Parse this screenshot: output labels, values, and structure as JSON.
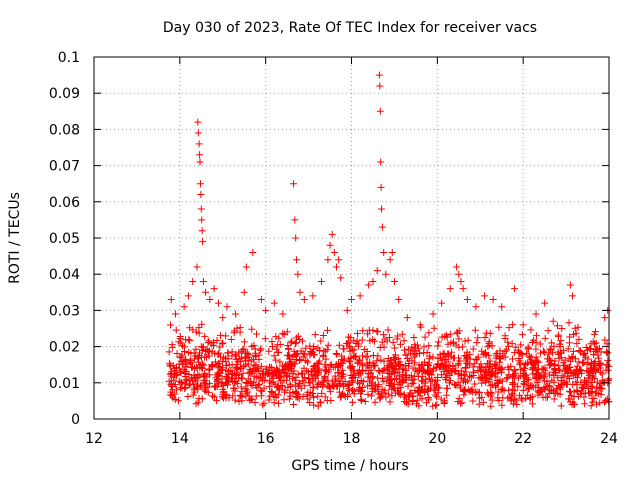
{
  "chart_data": {
    "type": "scatter",
    "title": "Day 030 of 2023, Rate Of TEC Index for receiver vacs",
    "xlabel": "GPS time / hours",
    "ylabel": "ROTI / TECUs",
    "xlim": [
      12,
      24
    ],
    "ylim": [
      0,
      0.1
    ],
    "grid": true,
    "marker": "plus",
    "series_color": "#ff0000",
    "x_ticks": [
      {
        "value": 12,
        "label": "12"
      },
      {
        "value": 14,
        "label": "14"
      },
      {
        "value": 16,
        "label": "16"
      },
      {
        "value": 18,
        "label": "18"
      },
      {
        "value": 20,
        "label": "20"
      },
      {
        "value": 22,
        "label": "22"
      },
      {
        "value": 24,
        "label": "24"
      }
    ],
    "y_ticks": [
      {
        "value": 0,
        "label": "0"
      },
      {
        "value": 0.01,
        "label": "0.01"
      },
      {
        "value": 0.02,
        "label": "0.02"
      },
      {
        "value": 0.03,
        "label": "0.03"
      },
      {
        "value": 0.04,
        "label": "0.04"
      },
      {
        "value": 0.05,
        "label": "0.05"
      },
      {
        "value": 0.06,
        "label": "0.06"
      },
      {
        "value": 0.07,
        "label": "0.07"
      },
      {
        "value": 0.08,
        "label": "0.08"
      },
      {
        "value": 0.09,
        "label": "0.09"
      },
      {
        "value": 0.1,
        "label": "0.1"
      }
    ],
    "background_band": {
      "x_start": 13.75,
      "x_end": 24,
      "baseline": 0.01,
      "spread": 0.013
    },
    "points": [
      [
        13.8,
        0.033
      ],
      [
        13.9,
        0.029
      ],
      [
        14.1,
        0.031
      ],
      [
        14.2,
        0.034
      ],
      [
        14.3,
        0.038
      ],
      [
        14.4,
        0.042
      ],
      [
        14.42,
        0.082
      ],
      [
        14.43,
        0.079
      ],
      [
        14.45,
        0.076
      ],
      [
        14.46,
        0.073
      ],
      [
        14.47,
        0.071
      ],
      [
        14.48,
        0.065
      ],
      [
        14.49,
        0.062
      ],
      [
        14.5,
        0.058
      ],
      [
        14.51,
        0.055
      ],
      [
        14.52,
        0.052
      ],
      [
        14.53,
        0.049
      ],
      [
        14.55,
        0.038
      ],
      [
        14.6,
        0.035
      ],
      [
        14.7,
        0.033
      ],
      [
        14.8,
        0.036
      ],
      [
        14.9,
        0.032
      ],
      [
        15.0,
        0.028
      ],
      [
        15.1,
        0.031
      ],
      [
        15.3,
        0.029
      ],
      [
        15.5,
        0.035
      ],
      [
        15.55,
        0.042
      ],
      [
        15.7,
        0.046
      ],
      [
        15.9,
        0.033
      ],
      [
        16.0,
        0.03
      ],
      [
        16.2,
        0.032
      ],
      [
        16.4,
        0.029
      ],
      [
        16.65,
        0.065
      ],
      [
        16.68,
        0.055
      ],
      [
        16.7,
        0.05
      ],
      [
        16.72,
        0.044
      ],
      [
        16.75,
        0.04
      ],
      [
        16.8,
        0.035
      ],
      [
        16.9,
        0.033
      ],
      [
        17.1,
        0.034
      ],
      [
        17.3,
        0.038
      ],
      [
        17.45,
        0.044
      ],
      [
        17.5,
        0.048
      ],
      [
        17.55,
        0.051
      ],
      [
        17.6,
        0.046
      ],
      [
        17.65,
        0.042
      ],
      [
        17.7,
        0.044
      ],
      [
        17.75,
        0.039
      ],
      [
        17.9,
        0.03
      ],
      [
        18.0,
        0.033
      ],
      [
        18.2,
        0.034
      ],
      [
        18.4,
        0.037
      ],
      [
        18.5,
        0.038
      ],
      [
        18.6,
        0.041
      ],
      [
        18.65,
        0.095
      ],
      [
        18.66,
        0.092
      ],
      [
        18.67,
        0.085
      ],
      [
        18.68,
        0.071
      ],
      [
        18.69,
        0.064
      ],
      [
        18.7,
        0.058
      ],
      [
        18.72,
        0.053
      ],
      [
        18.75,
        0.046
      ],
      [
        18.8,
        0.04
      ],
      [
        18.9,
        0.044
      ],
      [
        18.95,
        0.046
      ],
      [
        19.0,
        0.038
      ],
      [
        19.1,
        0.033
      ],
      [
        19.3,
        0.028
      ],
      [
        19.6,
        0.026
      ],
      [
        19.9,
        0.029
      ],
      [
        20.1,
        0.032
      ],
      [
        20.3,
        0.036
      ],
      [
        20.45,
        0.042
      ],
      [
        20.5,
        0.04
      ],
      [
        20.55,
        0.038
      ],
      [
        20.6,
        0.036
      ],
      [
        20.7,
        0.033
      ],
      [
        20.9,
        0.031
      ],
      [
        21.1,
        0.034
      ],
      [
        21.3,
        0.033
      ],
      [
        21.5,
        0.031
      ],
      [
        21.8,
        0.036
      ],
      [
        22.0,
        0.026
      ],
      [
        22.3,
        0.029
      ],
      [
        22.5,
        0.032
      ],
      [
        22.7,
        0.027
      ],
      [
        22.9,
        0.025
      ],
      [
        23.1,
        0.037
      ],
      [
        23.15,
        0.034
      ],
      [
        23.3,
        0.022
      ],
      [
        23.5,
        0.019
      ],
      [
        23.7,
        0.021
      ],
      [
        23.9,
        0.028
      ],
      [
        23.97,
        0.03
      ]
    ]
  }
}
